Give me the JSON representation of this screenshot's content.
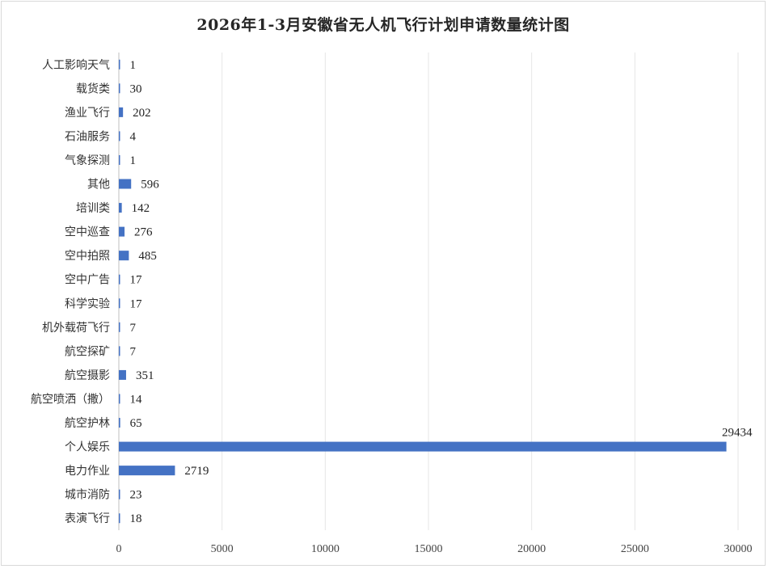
{
  "chart_data": {
    "type": "bar",
    "orientation": "horizontal",
    "title": "2026年1-3月安徽省无人机飞行计划申请数量统计图",
    "categories": [
      "人工影响天气",
      "载货类",
      "渔业飞行",
      "石油服务",
      "气象探测",
      "其他",
      "培训类",
      "空中巡查",
      "空中拍照",
      "空中广告",
      "科学实验",
      "机外载荷飞行",
      "航空探矿",
      "航空摄影",
      "航空喷洒（撒）",
      "航空护林",
      "个人娱乐",
      "电力作业",
      "城市消防",
      "表演飞行"
    ],
    "values": [
      1,
      30,
      202,
      4,
      1,
      596,
      142,
      276,
      485,
      17,
      17,
      7,
      7,
      351,
      14,
      65,
      29434,
      2719,
      23,
      18
    ],
    "xlim": [
      0,
      30000
    ],
    "xticks": [
      0,
      5000,
      10000,
      15000,
      20000,
      25000,
      30000
    ],
    "grid": "vertical",
    "bar_color": "#4472C4",
    "grid_color": "#e6e6e6"
  }
}
